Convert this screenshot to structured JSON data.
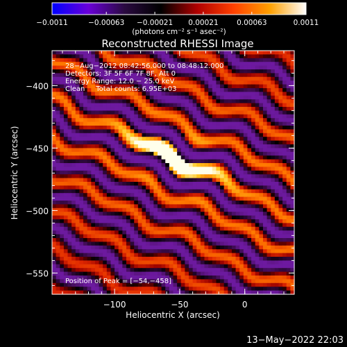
{
  "chart_data": {
    "type": "heatmap",
    "title": "Reconstructed RHESSI Image",
    "xlabel": "Heliocentric X (arcsec)",
    "ylabel": "Heliocentric Y (arcsec)",
    "xlim": [
      -148,
      38
    ],
    "ylim": [
      -567,
      -372
    ],
    "x_ticks": [
      {
        "value": -100,
        "label": "−100"
      },
      {
        "value": -50,
        "label": "−50"
      },
      {
        "value": 0,
        "label": "0"
      }
    ],
    "y_ticks": [
      {
        "value": -400,
        "label": "−400"
      },
      {
        "value": -450,
        "label": "−450"
      },
      {
        "value": -500,
        "label": "−500"
      },
      {
        "value": -550,
        "label": "−550"
      }
    ],
    "colorbar": {
      "min": -0.0011,
      "max": 0.0011,
      "unit_label": "(photons cm⁻² s⁻¹ asec⁻²)",
      "tick_labels": [
        "−0.0011",
        "−0.00063",
        "−0.00021",
        "0.00021",
        "0.00063",
        "0.0011"
      ],
      "tick_values": [
        -0.0011,
        -0.00063,
        -0.00021,
        0.00021,
        0.00063,
        0.0011
      ],
      "colors": [
        "#0000ff",
        "#6a00d8",
        "#2a0a40",
        "#000000",
        "#b00000",
        "#ff4000",
        "#ffa000",
        "#ffffff"
      ]
    },
    "peak": {
      "x": -54,
      "y": -458
    },
    "annotations": [
      "28−Aug−2012 08:42:56.000 to 08:48:12.000",
      "Detectors: 3F 5F 6F 7F 8F, Att 0",
      "Energy Range: 12.0 − 25.0 keV",
      "Clean     Total counts: 6.95E+03",
      "Position of Peak = [−54,−458]"
    ]
  },
  "footer": {
    "timestamp": "13−May−2022 22:03"
  }
}
